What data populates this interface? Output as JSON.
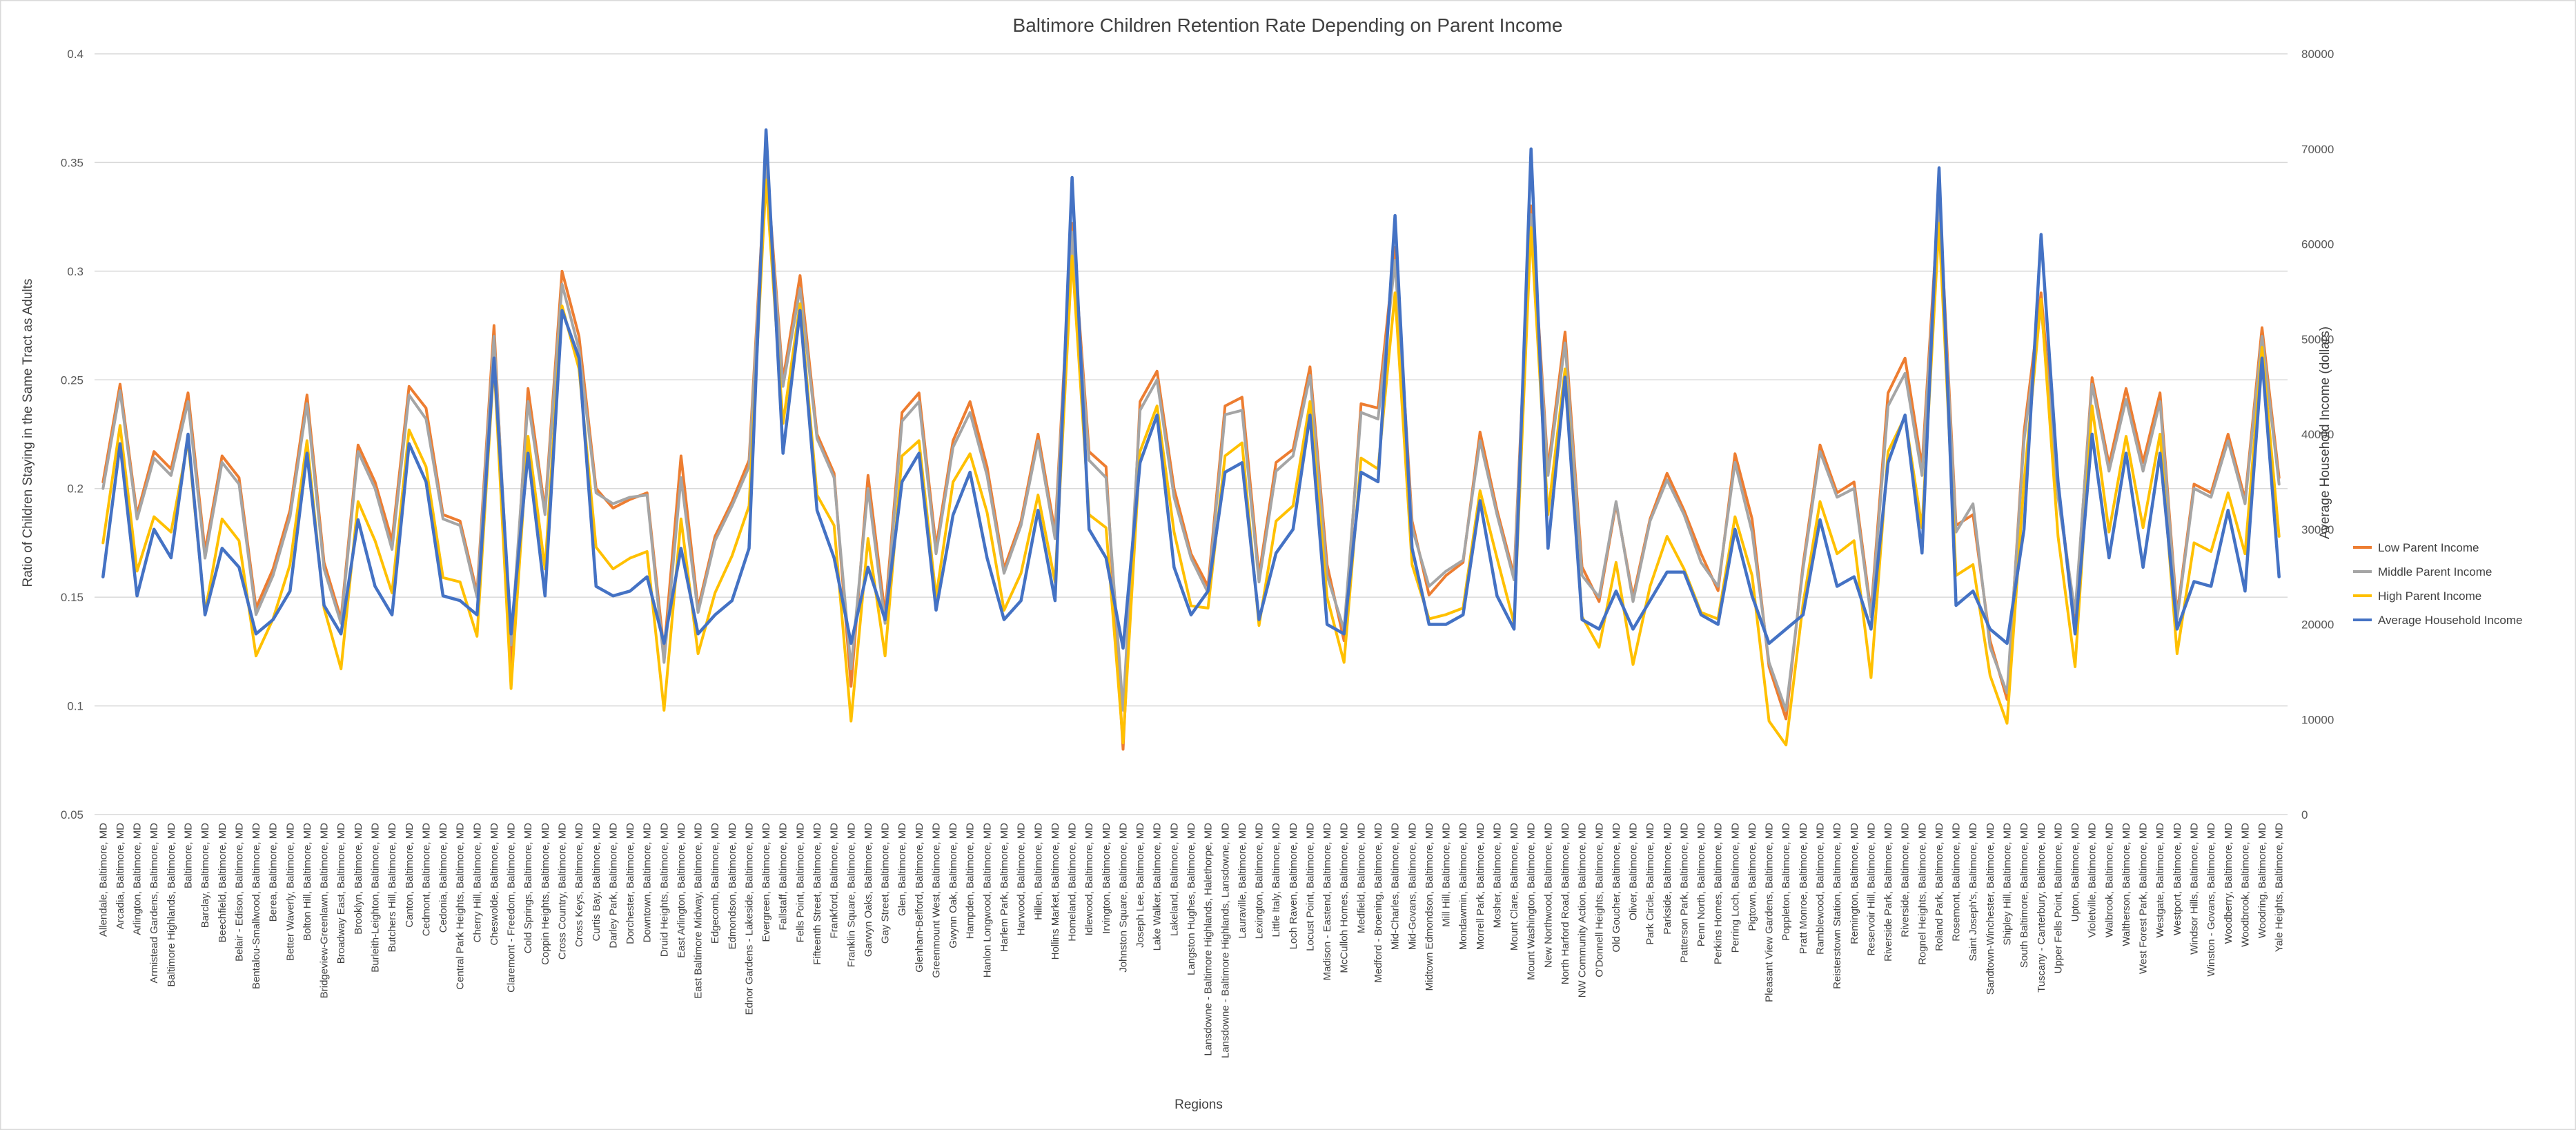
{
  "chart_data": {
    "type": "line",
    "title": "Baltimore Children Retention Rate Depending on Parent Income",
    "xlabel": "Regions",
    "ylabel": "Ratio of Children Staying in the Same Tract as Adults",
    "y2label": "Average Household Income (dollars)",
    "ylim": [
      0.05,
      0.4
    ],
    "y2lim": [
      0,
      80000
    ],
    "yticks": [
      "0.05",
      "0.1",
      "0.15",
      "0.2",
      "0.25",
      "0.3",
      "0.35",
      "0.4"
    ],
    "y2ticks": [
      "0",
      "10000",
      "20000",
      "30000",
      "40000",
      "50000",
      "60000",
      "70000",
      "80000"
    ],
    "grid": true,
    "legend_position": "right",
    "categories": [
      "Allendale, Baltimore, MD",
      "Arcadia, Baltimore, MD",
      "Arlington, Baltimore, MD",
      "Armistead Gardens, Baltimore, MD",
      "Baltimore Highlands, Baltimore, MD",
      "Baltimore, MD",
      "Barclay, Baltimore, MD",
      "Beechfield, Baltimore, MD",
      "Belair - Edison, Baltimore, MD",
      "Bentalou-Smallwood, Baltimore, MD",
      "Berea, Baltimore, MD",
      "Better Waverly, Baltimore, MD",
      "Bolton Hill, Baltimore, MD",
      "Bridgeview-Greenlawn, Baltimore, MD",
      "Broadway East, Baltimore, MD",
      "Brooklyn, Baltimore, MD",
      "Burleith-Leighton, Baltimore, MD",
      "Butchers Hill, Baltimore, MD",
      "Canton, Baltimore, MD",
      "Cedmont, Baltimore, MD",
      "Cedonia, Baltimore, MD",
      "Central Park Heights, Baltimore, MD",
      "Cherry Hill, Baltimore, MD",
      "Cheswolde, Baltimore, MD",
      "Claremont - Freedom, Baltimore, MD",
      "Cold Springs, Baltimore, MD",
      "Coppin Heights, Baltimore, MD",
      "Cross Country, Baltimore, MD",
      "Cross Keys, Baltimore, MD",
      "Curtis Bay, Baltimore, MD",
      "Darley Park, Baltimore, MD",
      "Dorchester, Baltimore, MD",
      "Downtown, Baltimore, MD",
      "Druid Heights, Baltimore, MD",
      "East Arlington, Baltimore, MD",
      "East Baltimore Midway, Baltimore, MD",
      "Edgecomb, Baltimore, MD",
      "Edmondson, Baltimore, MD",
      "Ednor Gardens - Lakeside, Baltimore, MD",
      "Evergreen, Baltimore, MD",
      "Fallstaff, Baltimore, MD",
      "Fells Point, Baltimore, MD",
      "Fifteenth Street, Baltimore, MD",
      "Frankford, Baltimore, MD",
      "Franklin Square, Baltimore, MD",
      "Garwyn Oaks, Baltimore, MD",
      "Gay Street, Baltimore, MD",
      "Glen, Baltimore, MD",
      "Glenham-Belford, Baltimore, MD",
      "Greenmount West, Baltimore, MD",
      "Gwynn Oak, Baltimore, MD",
      "Hampden, Baltimore, MD",
      "Hanlon Longwood, Baltimore, MD",
      "Harlem Park, Baltimore, MD",
      "Harwood, Baltimore, MD",
      "Hillen, Baltimore, MD",
      "Hollins Market, Baltimore, MD",
      "Homeland, Baltimore, MD",
      "Idlewood, Baltimore, MD",
      "Irvington, Baltimore, MD",
      "Johnston Square, Baltimore, MD",
      "Joseph Lee, Baltimore, MD",
      "Lake Walker, Baltimore, MD",
      "Lakeland, Baltimore, MD",
      "Langston Hughes, Baltimore, MD",
      "Lansdowne - Baltimore Highlands, Halethorpe, MD",
      "Lansdowne - Baltimore Highlands, Lansdowne, MD",
      "Lauraville, Baltimore, MD",
      "Lexington, Baltimore, MD",
      "Little Italy, Baltimore, MD",
      "Loch Raven, Baltimore, MD",
      "Locust Point, Baltimore, MD",
      "Madison - Eastend, Baltimore, MD",
      "McCulloh Homes, Baltimore, MD",
      "Medfield, Baltimore, MD",
      "Medford - Broening, Baltimore, MD",
      "Mid-Charles, Baltimore, MD",
      "Mid-Govans, Baltimore, MD",
      "Midtown Edmondson, Baltimore, MD",
      "Mill Hill, Baltimore, MD",
      "Mondawmin, Baltimore, MD",
      "Morrell Park, Baltimore, MD",
      "Mosher, Baltimore, MD",
      "Mount Clare, Baltimore, MD",
      "Mount Washington, Baltimore, MD",
      "New Northwood, Baltimore, MD",
      "North Harford Road, Baltimore, MD",
      "NW Community Action, Baltimore, MD",
      "O'Donnell Heights, Baltimore, MD",
      "Old Goucher, Baltimore, MD",
      "Oliver, Baltimore, MD",
      "Park Circle, Baltimore, MD",
      "Parkside, Baltimore, MD",
      "Patterson Park, Baltimore, MD",
      "Penn North, Baltimore, MD",
      "Perkins Homes, Baltimore, MD",
      "Perring Loch, Baltimore, MD",
      "Pigtown, Baltimore, MD",
      "Pleasant View Gardens, Baltimore, MD",
      "Poppleton, Baltimore, MD",
      "Pratt Monroe, Baltimore, MD",
      "Ramblewood, Baltimore, MD",
      "Reisterstown Station, Baltimore, MD",
      "Remington, Baltimore, MD",
      "Reservoir Hill, Baltimore, MD",
      "Riverside Park, Baltimore, MD",
      "Riverside, Baltimore, MD",
      "Rognel Heights, Baltimore, MD",
      "Roland Park, Baltimore, MD",
      "Rosemont, Baltimore, MD",
      "Saint Joseph's, Baltimore, MD",
      "Sandtown-Winchester, Baltimore, MD",
      "Shipley Hill, Baltimore, MD",
      "South Baltimore, Baltimore, MD",
      "Tuscany - Canterbury, Baltimore, MD",
      "Upper Fells Point, Baltimore, MD",
      "Upton, Baltimore, MD",
      "Violetville, Baltimore, MD",
      "Walbrook, Baltimore, MD",
      "Waltherson, Baltimore, MD",
      "West Forest Park, Baltimore, MD",
      "Westgate, Baltimore, MD",
      "Westport, Baltimore, MD",
      "Windsor Hills, Baltimore, MD",
      "Winston - Govans, Baltimore, MD",
      "Woodberry, Baltimore, MD",
      "Woodbrook, Baltimore, MD",
      "Woodring, Baltimore, MD",
      "Yale Heights, Baltimore, MD"
    ],
    "series": [
      {
        "name": "Low Parent Income",
        "axis": "left",
        "color": "#ED7D31",
        "values": [
          0.203,
          0.248,
          0.188,
          0.217,
          0.209,
          0.244,
          0.171,
          0.215,
          0.205,
          0.145,
          0.163,
          0.19,
          0.243,
          0.166,
          0.14,
          0.22,
          0.203,
          0.176,
          0.247,
          0.237,
          0.188,
          0.185,
          0.152,
          0.275,
          0.118,
          0.246,
          0.19,
          0.3,
          0.27,
          0.2,
          0.191,
          0.195,
          0.198,
          0.125,
          0.215,
          0.145,
          0.178,
          0.194,
          0.213,
          0.352,
          0.25,
          0.298,
          0.225,
          0.207,
          0.109,
          0.206,
          0.142,
          0.235,
          0.244,
          0.173,
          0.222,
          0.24,
          0.21,
          0.163,
          0.185,
          0.225,
          0.18,
          0.322,
          0.217,
          0.21,
          0.08,
          0.24,
          0.254,
          0.2,
          0.17,
          0.155,
          0.238,
          0.242,
          0.16,
          0.212,
          0.218,
          0.256,
          0.165,
          0.13,
          0.239,
          0.237,
          0.311,
          0.185,
          0.151,
          0.16,
          0.166,
          0.226,
          0.19,
          0.16,
          0.33,
          0.209,
          0.272,
          0.164,
          0.148,
          0.193,
          0.15,
          0.186,
          0.207,
          0.19,
          0.17,
          0.153,
          0.216,
          0.186,
          0.118,
          0.094,
          0.165,
          0.22,
          0.198,
          0.203,
          0.143,
          0.244,
          0.26,
          0.21,
          0.336,
          0.183,
          0.188,
          0.13,
          0.103,
          0.226,
          0.29,
          0.2,
          0.14,
          0.251,
          0.211,
          0.246,
          0.212,
          0.244,
          0.142,
          0.202,
          0.198,
          0.225,
          0.195,
          0.274,
          0.205
        ]
      },
      {
        "name": "Middle Parent Income",
        "axis": "left",
        "color": "#A5A5A5",
        "values": [
          0.2,
          0.245,
          0.186,
          0.214,
          0.206,
          0.24,
          0.168,
          0.212,
          0.202,
          0.142,
          0.16,
          0.187,
          0.239,
          0.163,
          0.138,
          0.217,
          0.2,
          0.172,
          0.243,
          0.232,
          0.186,
          0.183,
          0.15,
          0.27,
          0.128,
          0.24,
          0.188,
          0.294,
          0.264,
          0.198,
          0.193,
          0.196,
          0.197,
          0.12,
          0.205,
          0.143,
          0.176,
          0.192,
          0.21,
          0.348,
          0.247,
          0.292,
          0.223,
          0.205,
          0.117,
          0.2,
          0.138,
          0.231,
          0.24,
          0.17,
          0.219,
          0.235,
          0.206,
          0.161,
          0.183,
          0.222,
          0.177,
          0.318,
          0.213,
          0.205,
          0.098,
          0.236,
          0.25,
          0.196,
          0.168,
          0.152,
          0.234,
          0.236,
          0.157,
          0.208,
          0.215,
          0.252,
          0.16,
          0.135,
          0.235,
          0.232,
          0.305,
          0.182,
          0.155,
          0.162,
          0.167,
          0.222,
          0.188,
          0.158,
          0.326,
          0.206,
          0.267,
          0.16,
          0.15,
          0.194,
          0.148,
          0.185,
          0.204,
          0.188,
          0.166,
          0.155,
          0.212,
          0.18,
          0.12,
          0.098,
          0.163,
          0.217,
          0.196,
          0.2,
          0.141,
          0.238,
          0.253,
          0.206,
          0.33,
          0.18,
          0.193,
          0.127,
          0.106,
          0.222,
          0.284,
          0.196,
          0.143,
          0.248,
          0.208,
          0.241,
          0.208,
          0.24,
          0.14,
          0.2,
          0.196,
          0.222,
          0.193,
          0.27,
          0.202
        ]
      },
      {
        "name": "High Parent Income",
        "axis": "left",
        "color": "#FFC000",
        "values": [
          0.175,
          0.229,
          0.162,
          0.187,
          0.18,
          0.222,
          0.143,
          0.186,
          0.176,
          0.123,
          0.14,
          0.165,
          0.222,
          0.145,
          0.117,
          0.194,
          0.176,
          0.152,
          0.227,
          0.21,
          0.159,
          0.157,
          0.132,
          0.258,
          0.108,
          0.224,
          0.163,
          0.284,
          0.255,
          0.173,
          0.163,
          0.168,
          0.171,
          0.098,
          0.186,
          0.124,
          0.152,
          0.169,
          0.192,
          0.342,
          0.23,
          0.285,
          0.197,
          0.183,
          0.093,
          0.177,
          0.123,
          0.215,
          0.222,
          0.15,
          0.203,
          0.216,
          0.189,
          0.144,
          0.161,
          0.197,
          0.157,
          0.307,
          0.188,
          0.182,
          0.083,
          0.217,
          0.238,
          0.18,
          0.146,
          0.145,
          0.215,
          0.221,
          0.137,
          0.185,
          0.192,
          0.24,
          0.15,
          0.12,
          0.214,
          0.209,
          0.29,
          0.165,
          0.14,
          0.142,
          0.145,
          0.199,
          0.168,
          0.138,
          0.32,
          0.188,
          0.255,
          0.141,
          0.127,
          0.166,
          0.119,
          0.155,
          0.178,
          0.163,
          0.143,
          0.14,
          0.187,
          0.16,
          0.093,
          0.082,
          0.147,
          0.194,
          0.17,
          0.176,
          0.113,
          0.217,
          0.233,
          0.182,
          0.322,
          0.16,
          0.165,
          0.114,
          0.092,
          0.203,
          0.287,
          0.178,
          0.118,
          0.238,
          0.18,
          0.224,
          0.182,
          0.225,
          0.124,
          0.175,
          0.171,
          0.198,
          0.17,
          0.265,
          0.178
        ]
      },
      {
        "name": "Average Household Income",
        "axis": "right",
        "color": "#4472C4",
        "values": [
          25000,
          39000,
          23000,
          30000,
          27000,
          40000,
          21000,
          28000,
          26000,
          19000,
          20500,
          23500,
          38000,
          22000,
          19000,
          31000,
          24000,
          21000,
          39000,
          35000,
          23000,
          22500,
          21000,
          48000,
          19000,
          38000,
          23000,
          53000,
          48000,
          24000,
          23000,
          23500,
          25000,
          18000,
          28000,
          19000,
          21000,
          22500,
          28000,
          72000,
          38000,
          53000,
          32000,
          27000,
          18000,
          26000,
          20500,
          35000,
          38000,
          21500,
          31500,
          36000,
          27000,
          20500,
          22500,
          32000,
          22500,
          67000,
          30000,
          27000,
          17500,
          37000,
          42000,
          26000,
          21000,
          23500,
          36000,
          37000,
          20500,
          27500,
          30000,
          42000,
          20000,
          19000,
          36000,
          35000,
          63000,
          28000,
          20000,
          20000,
          21000,
          33000,
          23000,
          19500,
          70000,
          28000,
          46000,
          20500,
          19500,
          23500,
          19500,
          22500,
          25500,
          25500,
          21000,
          20000,
          30000,
          23000,
          18000,
          19500,
          21000,
          31000,
          24000,
          25000,
          19500,
          37000,
          42000,
          27500,
          68000,
          22000,
          23500,
          19500,
          18000,
          30000,
          61000,
          35000,
          19000,
          40000,
          27000,
          38000,
          26000,
          38000,
          19500,
          24500,
          24000,
          32000,
          23500,
          48000,
          25000
        ]
      }
    ]
  }
}
